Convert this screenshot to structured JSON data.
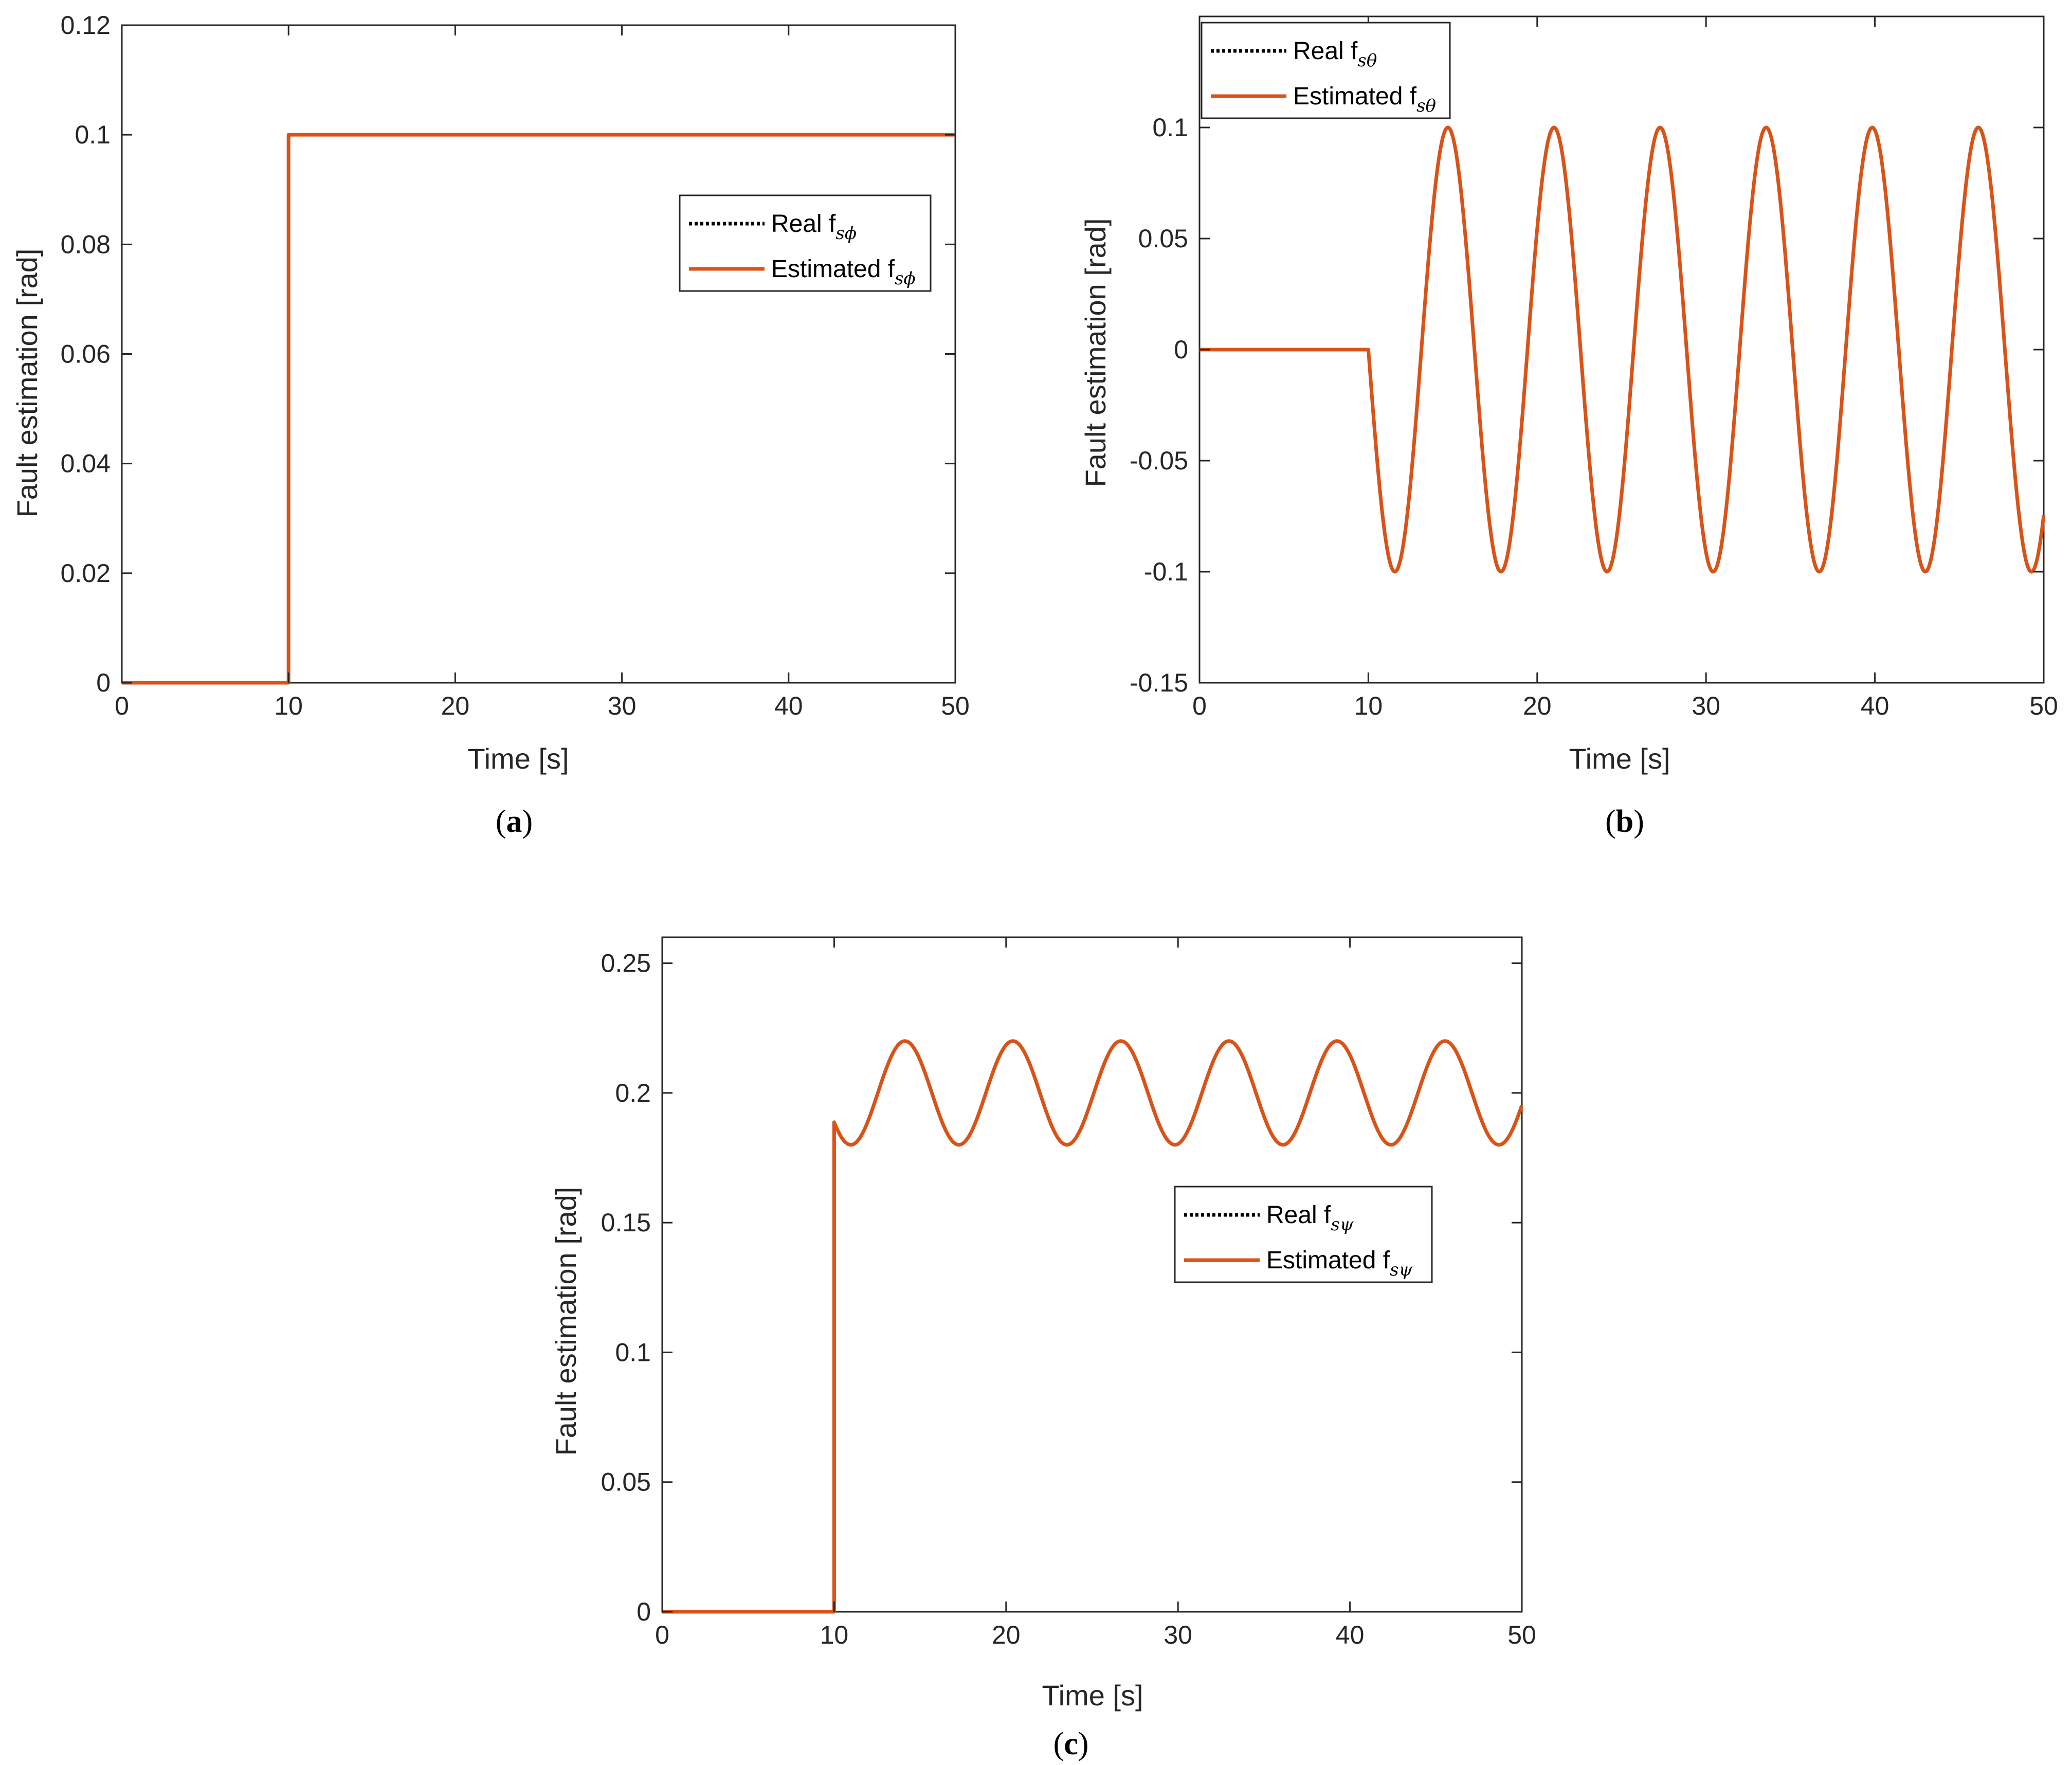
{
  "figure": {
    "captions": [
      "(a)",
      "(b)",
      "(c)"
    ],
    "colors": {
      "real": "#000000",
      "estimated": "#D95319",
      "axis": "#262626"
    }
  },
  "chart_data": [
    {
      "id": "a",
      "type": "line",
      "caption": "(a)",
      "xlabel": "Time [s]",
      "ylabel": "Fault estimation [rad]",
      "xlim": [
        0,
        50
      ],
      "ylim": [
        0,
        0.12
      ],
      "xticks": [
        0,
        10,
        20,
        30,
        40,
        50
      ],
      "xtick_labels": [
        "0",
        "10",
        "20",
        "30",
        "40",
        "50"
      ],
      "yticks": [
        0,
        0.02,
        0.04,
        0.06,
        0.08,
        0.1,
        0.12
      ],
      "ytick_labels": [
        "0",
        "0.02",
        "0.04",
        "0.06",
        "0.08",
        "0.1",
        "0.12"
      ],
      "grid": false,
      "legend": {
        "placement": "right",
        "entries": [
          {
            "name": "Real f",
            "subscript": "sϕ",
            "style": "dotted",
            "color": "#000000"
          },
          {
            "name": "Estimated f",
            "subscript": "sϕ",
            "style": "solid",
            "color": "#D95319"
          }
        ]
      },
      "series": [
        {
          "name": "Real f sϕ",
          "style": "dotted",
          "color": "#000000",
          "signal": {
            "kind": "step",
            "t_on": 10,
            "before": 0,
            "after": 0.1
          }
        },
        {
          "name": "Estimated f sϕ",
          "style": "solid",
          "color": "#D95319",
          "signal": {
            "kind": "step",
            "t_on": 10,
            "before": 0,
            "after": 0.1
          }
        }
      ]
    },
    {
      "id": "b",
      "type": "line",
      "caption": "(b)",
      "xlabel": "Time [s]",
      "ylabel": "Fault estimation [rad]",
      "xlim": [
        0,
        50
      ],
      "ylim": [
        -0.15,
        0.15
      ],
      "xticks": [
        0,
        10,
        20,
        30,
        40,
        50
      ],
      "xtick_labels": [
        "0",
        "10",
        "20",
        "30",
        "40",
        "50"
      ],
      "yticks": [
        -0.15,
        -0.1,
        -0.05,
        0,
        0.05,
        0.1
      ],
      "ytick_labels": [
        "-0.15",
        "-0.1",
        "-0.05",
        "0",
        "0.05",
        "0.1"
      ],
      "grid": false,
      "legend": {
        "placement": "top-left",
        "entries": [
          {
            "name": "Real f",
            "subscript": "sθ",
            "style": "dotted",
            "color": "#000000"
          },
          {
            "name": "Estimated f",
            "subscript": "sθ",
            "style": "solid",
            "color": "#D95319"
          }
        ]
      },
      "series": [
        {
          "name": "Real f sθ",
          "style": "dotted",
          "color": "#000000",
          "signal": {
            "kind": "sine",
            "t_on": 10,
            "before": 0,
            "offset": 0,
            "amplitude": -0.1,
            "frequency": 1,
            "phase_at_on": 0
          }
        },
        {
          "name": "Estimated f sθ",
          "style": "solid",
          "color": "#D95319",
          "signal": {
            "kind": "sine",
            "t_on": 10,
            "before": 0,
            "offset": 0,
            "amplitude": -0.1,
            "frequency": 1,
            "phase_at_on": 0
          }
        }
      ]
    },
    {
      "id": "c",
      "type": "line",
      "caption": "(c)",
      "xlabel": "Time [s]",
      "ylabel": "Fault estimation [rad]",
      "xlim": [
        0,
        50
      ],
      "ylim": [
        0,
        0.26
      ],
      "xticks": [
        0,
        10,
        20,
        30,
        40,
        50
      ],
      "xtick_labels": [
        "0",
        "10",
        "20",
        "30",
        "40",
        "50"
      ],
      "yticks": [
        0,
        0.05,
        0.1,
        0.15,
        0.2,
        0.25
      ],
      "ytick_labels": [
        "0",
        "0.05",
        "0.1",
        "0.15",
        "0.2",
        "0.25"
      ],
      "grid": false,
      "legend": {
        "placement": "right",
        "entries": [
          {
            "name": "Real f",
            "subscript": "sψ",
            "style": "dotted",
            "color": "#000000"
          },
          {
            "name": "Estimated f",
            "subscript": "sψ",
            "style": "solid",
            "color": "#D95319"
          }
        ]
      },
      "series": [
        {
          "name": "Real f sψ",
          "style": "dotted",
          "color": "#000000",
          "signal": {
            "kind": "sine",
            "t_on": 10,
            "before": 0,
            "offset": 0.2,
            "amplitude": -0.02,
            "frequency": 1,
            "phase_at_on": 0.6
          }
        },
        {
          "name": "Estimated f sψ",
          "style": "solid",
          "color": "#D95319",
          "signal": {
            "kind": "sine",
            "t_on": 10,
            "before": 0,
            "offset": 0.2,
            "amplitude": -0.02,
            "frequency": 1,
            "phase_at_on": 0.6
          }
        }
      ]
    }
  ]
}
